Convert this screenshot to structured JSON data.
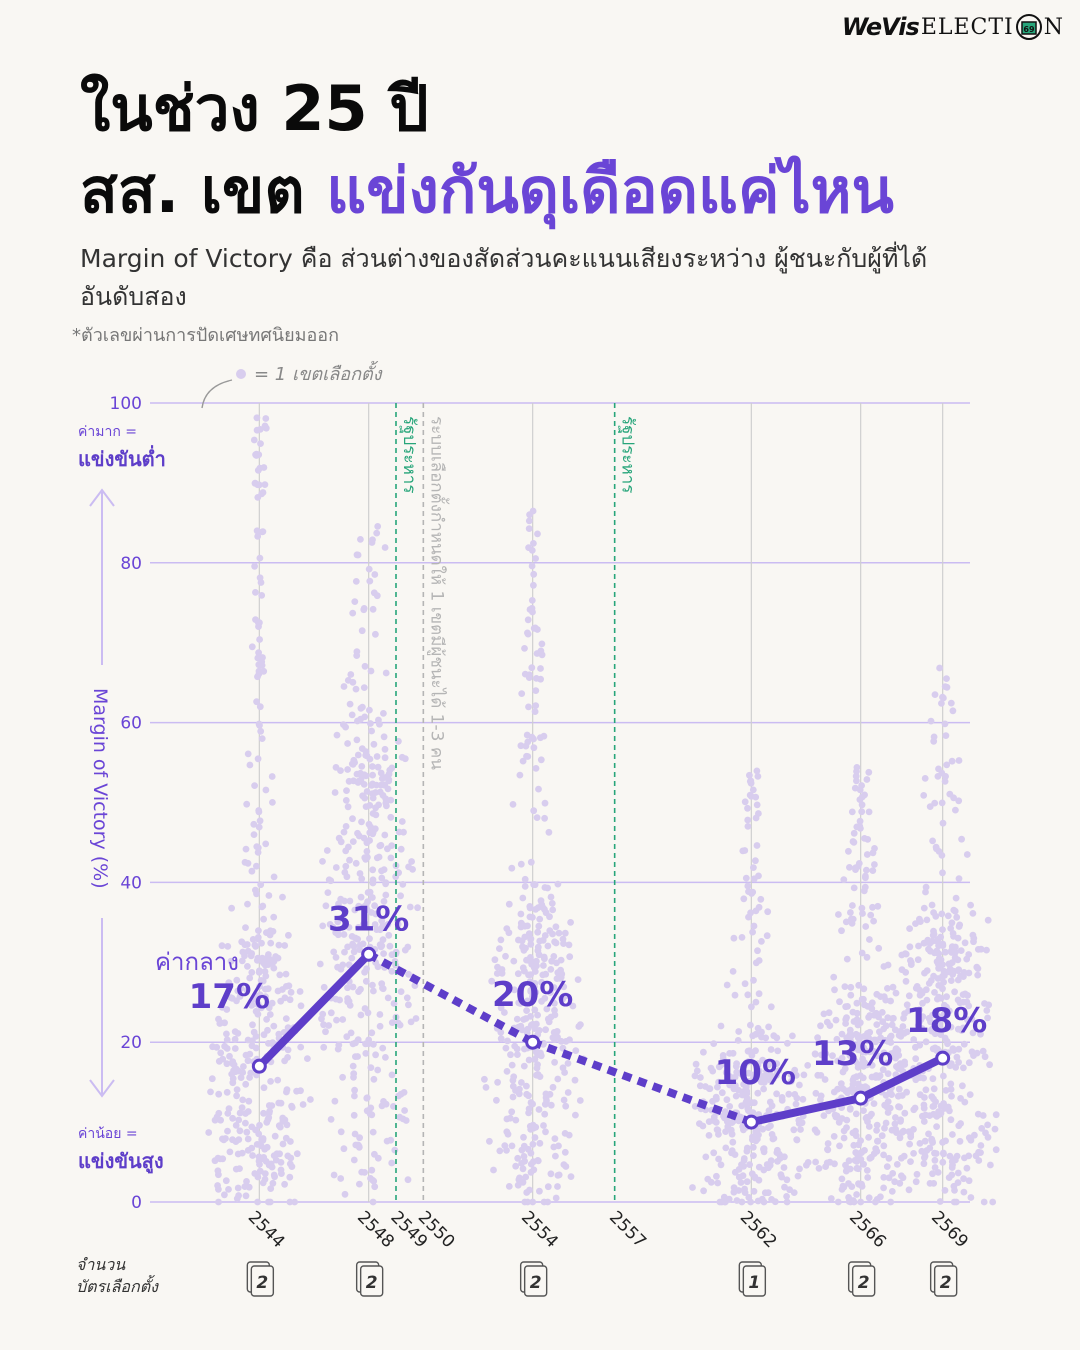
{
  "brand": {
    "logo_bold": "WeVis",
    "logo_rest": "ELECTI",
    "logo_end": "N",
    "logo_ballot": "69"
  },
  "title": {
    "line1": "ในช่วง 25 ปี",
    "line2_plain": "สส. เขต ",
    "line2_accent": "แข่งกันดุเดือดแค่ไหน"
  },
  "subtitle": "Margin of Victory คือ ส่วนต่างของสัดส่วนคะแนนเสียงระหว่าง ผู้ชนะกับผู้ที่ได้อันดับสอง",
  "footnote": "*ตัวเลขผ่านการปัดเศษทศนิยมออก",
  "colors": {
    "accent": "#6a45d6",
    "dots": "#d8cdee",
    "coup": "#27a57a",
    "law": "#b5b5b5",
    "background": "#f9f7f3"
  },
  "chart_data": {
    "type": "scatter",
    "subtype": "beeswarm with median line",
    "ylabel": "Margin of Victory (%)",
    "ylim": [
      0,
      100
    ],
    "yticks": [
      0,
      20,
      40,
      60,
      80,
      100
    ],
    "legend_text": "= 1 เขตเลือกตั้ง",
    "y_note_high_1": "ค่ามาก =",
    "y_note_high_2": "แข่งขันต่ำ",
    "y_note_low_1": "ค่าน้อย =",
    "y_note_low_2": "แข่งขันสูง",
    "median_label": "ค่ากลาง",
    "elections": [
      {
        "year": "2544",
        "median": 17,
        "median_label": "17%",
        "ballots": "2",
        "max_margin": 99,
        "districts": 400
      },
      {
        "year": "2548",
        "median": 31,
        "median_label": "31%",
        "ballots": "2",
        "max_margin": 88,
        "districts": 400
      },
      {
        "year": "2554",
        "median": 20,
        "median_label": "20%",
        "ballots": "2",
        "max_margin": 87,
        "districts": 375
      },
      {
        "year": "2562",
        "median": 10,
        "median_label": "10%",
        "ballots": "1",
        "max_margin": 54,
        "districts": 350
      },
      {
        "year": "2566",
        "median": 13,
        "median_label": "13%",
        "ballots": "2",
        "max_margin": 55,
        "districts": 400
      },
      {
        "year": "2569",
        "median": 18,
        "median_label": "18%",
        "ballots": "2",
        "max_margin": 69,
        "districts": 400
      }
    ],
    "solid_segments": [
      [
        0,
        1
      ],
      [
        3,
        4
      ],
      [
        4,
        5
      ]
    ],
    "dotted_segments": [
      [
        1,
        2
      ],
      [
        2,
        3
      ]
    ],
    "events": [
      {
        "year": "2550",
        "label": "ระบบเลือกตั้งกำหนดให้ 1 เขตมีผู้ชนะได้ 1-3 คน",
        "kind": "law"
      },
      {
        "year": "2549",
        "label": "รัฐประหาร",
        "kind": "coup"
      },
      {
        "year": "2557",
        "label": "รัฐประหาร",
        "kind": "coup"
      }
    ],
    "ballot_caption_1": "จำนวน",
    "ballot_caption_2": "บัตรเลือกตั้ง"
  }
}
